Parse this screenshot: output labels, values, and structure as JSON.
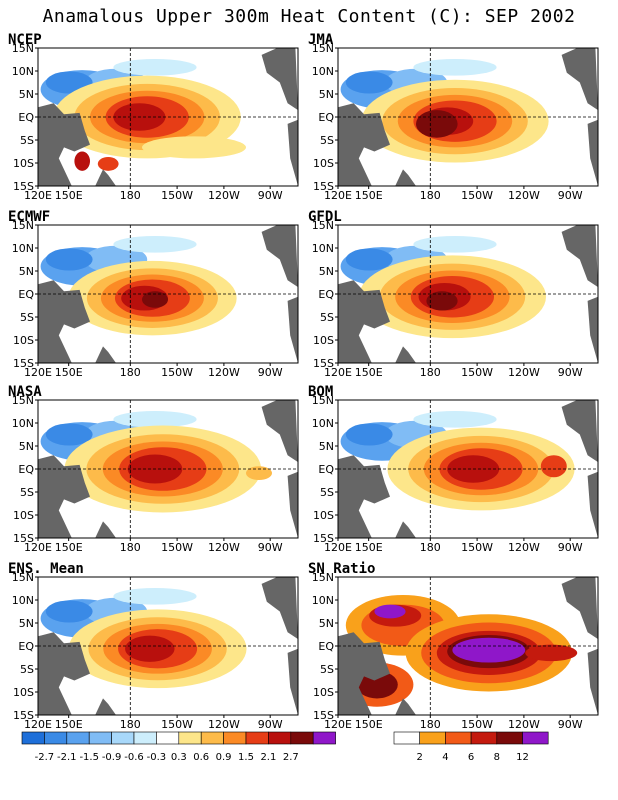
{
  "title": "Anamalous Upper 300m Heat Content (C): SEP 2002",
  "axes": {
    "y_ticks": [
      "15N",
      "10N",
      "5N",
      "EQ",
      "5S",
      "10S",
      "15S"
    ],
    "x_ticks": [
      "120E",
      "150E",
      "180",
      "150W",
      "120W",
      "90W"
    ]
  },
  "panels": [
    {
      "name": "NCEP"
    },
    {
      "name": "JMA"
    },
    {
      "name": "ECMWF"
    },
    {
      "name": "GFDL"
    },
    {
      "name": "NASA"
    },
    {
      "name": "BOM"
    },
    {
      "name": "ENS. Mean"
    },
    {
      "name": "SN Ratio"
    }
  ],
  "colorbar_anomaly": {
    "labels": [
      "-2.7",
      "-2.1",
      "-1.5",
      "-0.9",
      "-0.6",
      "-0.3",
      "0.3",
      "0.6",
      "0.9",
      "1.5",
      "2.1",
      "2.7"
    ],
    "colors": [
      "#1e6fd9",
      "#3a8ae6",
      "#5aa2ef",
      "#80bcf5",
      "#a8d8fa",
      "#cdeefc",
      "#ffffff",
      "#fde68a",
      "#fdbb4a",
      "#fb8a25",
      "#e63d16",
      "#b8100d",
      "#7a0a0a",
      "#8f17c9"
    ]
  },
  "colorbar_sn": {
    "labels": [
      "2",
      "4",
      "6",
      "8",
      "12"
    ],
    "colors": [
      "#ffffff",
      "#f9a11b",
      "#f25a17",
      "#c41a0e",
      "#7a0a0a",
      "#8f17c9"
    ]
  },
  "land_color": "#666666"
}
